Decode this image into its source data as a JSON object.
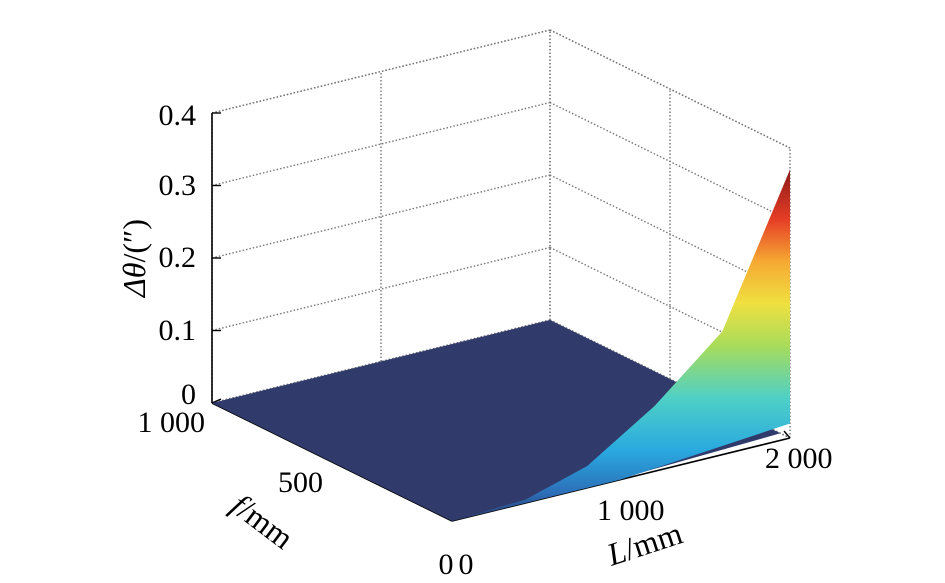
{
  "chart_data": {
    "type": "surface",
    "title": "",
    "x_axis": {
      "label_var": "L",
      "label_unit": "/mm",
      "ticks": [
        "0",
        "1 000",
        "2 000"
      ],
      "range": [
        0,
        2000
      ]
    },
    "y_axis": {
      "label_var": "f",
      "label_unit": "/mm",
      "ticks": [
        "0",
        "500",
        "1 000"
      ],
      "range": [
        0,
        1000
      ]
    },
    "z_axis": {
      "label_var": "Δθ",
      "label_unit": "/(″)",
      "ticks": [
        "0",
        "0.1",
        "0.2",
        "0.3",
        "0.4"
      ],
      "range": [
        0,
        0.4
      ]
    },
    "grid": true,
    "colormap": "jet",
    "surface_samples": {
      "L": [
        0,
        400,
        800,
        1200,
        1600,
        2000
      ],
      "f": [
        0,
        100,
        200,
        400,
        600,
        1000
      ],
      "values": [
        [
          0,
          0,
          0,
          0,
          0,
          0
        ],
        [
          0.002,
          0,
          0,
          0,
          0,
          0
        ],
        [
          0.03,
          0.01,
          0,
          0,
          0,
          0
        ],
        [
          0.09,
          0.04,
          0.01,
          0,
          0,
          0
        ],
        [
          0.17,
          0.08,
          0.02,
          0.005,
          0,
          0
        ],
        [
          0.37,
          0.17,
          0.05,
          0.01,
          0.003,
          0
        ]
      ]
    }
  }
}
